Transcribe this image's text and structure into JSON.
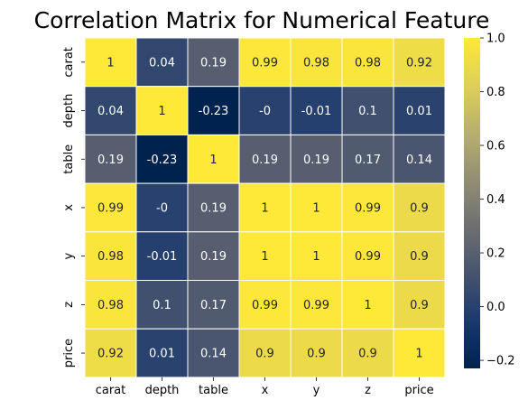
{
  "chart_data": {
    "type": "heatmap",
    "title": "Correlation Matrix for Numerical Feature",
    "xlabel": "",
    "ylabel": "",
    "x_categories": [
      "carat",
      "depth",
      "table",
      "x",
      "y",
      "z",
      "price"
    ],
    "y_categories": [
      "carat",
      "depth",
      "table",
      "x",
      "y",
      "z",
      "price"
    ],
    "values": [
      [
        1,
        0.04,
        0.19,
        0.99,
        0.98,
        0.98,
        0.92
      ],
      [
        0.04,
        1,
        -0.23,
        -0.0,
        -0.01,
        0.1,
        0.01
      ],
      [
        0.19,
        -0.23,
        1,
        0.19,
        0.19,
        0.17,
        0.14
      ],
      [
        0.99,
        -0.0,
        0.19,
        1,
        1,
        0.99,
        0.9
      ],
      [
        0.98,
        -0.01,
        0.19,
        1,
        1,
        0.99,
        0.9
      ],
      [
        0.98,
        0.1,
        0.17,
        0.99,
        0.99,
        1,
        0.9
      ],
      [
        0.92,
        0.01,
        0.14,
        0.9,
        0.9,
        0.9,
        1
      ]
    ],
    "cell_labels": [
      [
        "1",
        "0.04",
        "0.19",
        "0.99",
        "0.98",
        "0.98",
        "0.92"
      ],
      [
        "0.04",
        "1",
        "-0.23",
        "-0",
        "-0.01",
        "0.1",
        "0.01"
      ],
      [
        "0.19",
        "-0.23",
        "1",
        "0.19",
        "0.19",
        "0.17",
        "0.14"
      ],
      [
        "0.99",
        "-0",
        "0.19",
        "1",
        "1",
        "0.99",
        "0.9"
      ],
      [
        "0.98",
        "-0.01",
        "0.19",
        "1",
        "1",
        "0.99",
        "0.9"
      ],
      [
        "0.98",
        "0.1",
        "0.17",
        "0.99",
        "0.99",
        "1",
        "0.9"
      ],
      [
        "0.92",
        "0.01",
        "0.14",
        "0.9",
        "0.9",
        "0.9",
        "1"
      ]
    ],
    "colormap": "cividis",
    "vmin": -0.23,
    "vmax": 1.0,
    "colorbar_ticks": [
      -0.2,
      0.0,
      0.2,
      0.4,
      0.6,
      0.8,
      1.0
    ],
    "colorbar_tick_labels": [
      "−0.2",
      "0.0",
      "0.2",
      "0.4",
      "0.6",
      "0.8",
      "1.0"
    ],
    "grid": false,
    "legend": "colorbar-right"
  }
}
